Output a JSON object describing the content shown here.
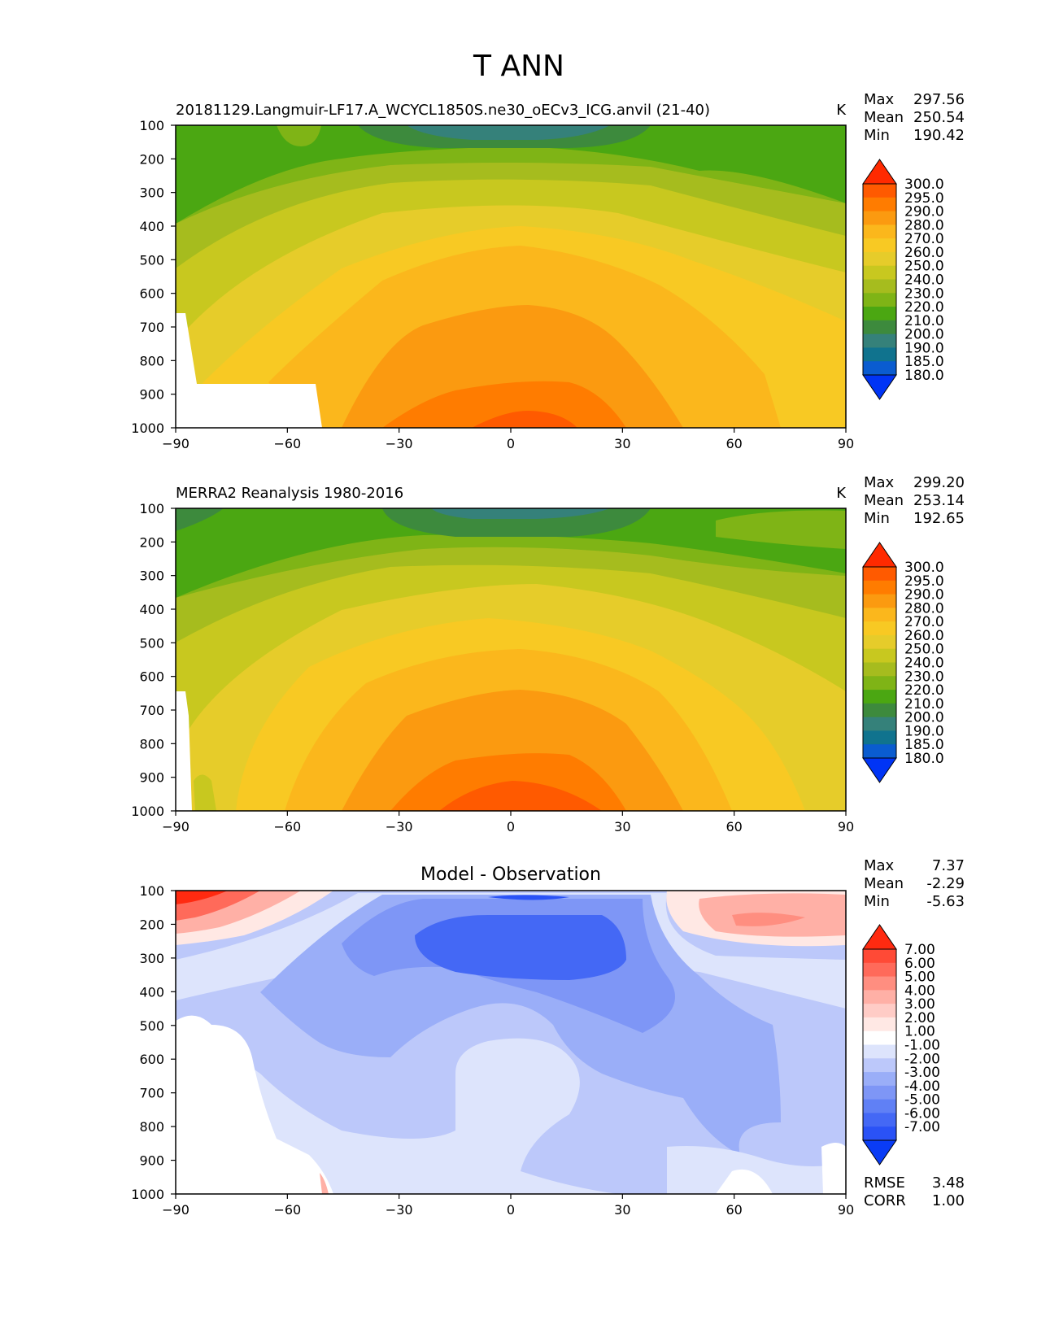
{
  "figure": {
    "title": "T ANN"
  },
  "chart_data": [
    {
      "type": "heatmap",
      "title": "20181129.Langmuir-LF17.A_WCYCL1850S.ne30_oECv3_ICG.anvil (21-40)",
      "units": "K",
      "xlabel": "",
      "ylabel": "",
      "xlim": [
        -90,
        90
      ],
      "ylim": [
        1000,
        100
      ],
      "x_ticks": [
        "−90",
        "−60",
        "−30",
        "0",
        "30",
        "60",
        "90"
      ],
      "x_tick_values": [
        -90,
        -60,
        -30,
        0,
        30,
        60,
        90
      ],
      "y_ticks": [
        "100",
        "200",
        "300",
        "400",
        "500",
        "600",
        "700",
        "800",
        "900",
        "1000"
      ],
      "y_tick_values": [
        100,
        200,
        300,
        400,
        500,
        600,
        700,
        800,
        900,
        1000
      ],
      "stats": [
        {
          "label": "Max",
          "value": "297.56"
        },
        {
          "label": "Mean",
          "value": "250.54"
        },
        {
          "label": "Min",
          "value": "190.42"
        }
      ],
      "colorbar": {
        "levels": [
          "300.0",
          "295.0",
          "290.0",
          "280.0",
          "270.0",
          "260.0",
          "250.0",
          "240.0",
          "230.0",
          "220.0",
          "210.0",
          "200.0",
          "190.0",
          "185.0",
          "180.0"
        ],
        "colors": [
          "#ff2a00",
          "#ff5a00",
          "#ff7c00",
          "#fb9a10",
          "#fbb71c",
          "#f8c923",
          "#e6cc2a",
          "#c8c81f",
          "#a6bc1e",
          "#7fb416",
          "#4ba712",
          "#3d8a3d",
          "#35817a",
          "#10738e",
          "#0a5cd0",
          "#0034f5"
        ]
      },
      "field": "temperature"
    },
    {
      "type": "heatmap",
      "title": "MERRA2 Reanalysis 1980-2016",
      "units": "K",
      "xlabel": "",
      "ylabel": "",
      "xlim": [
        -90,
        90
      ],
      "ylim": [
        1000,
        100
      ],
      "x_ticks": [
        "−90",
        "−60",
        "−30",
        "0",
        "30",
        "60",
        "90"
      ],
      "x_tick_values": [
        -90,
        -60,
        -30,
        0,
        30,
        60,
        90
      ],
      "y_ticks": [
        "100",
        "200",
        "300",
        "400",
        "500",
        "600",
        "700",
        "800",
        "900",
        "1000"
      ],
      "y_tick_values": [
        100,
        200,
        300,
        400,
        500,
        600,
        700,
        800,
        900,
        1000
      ],
      "stats": [
        {
          "label": "Max",
          "value": "299.20"
        },
        {
          "label": "Mean",
          "value": "253.14"
        },
        {
          "label": "Min",
          "value": "192.65"
        }
      ],
      "colorbar": {
        "levels": [
          "300.0",
          "295.0",
          "290.0",
          "280.0",
          "270.0",
          "260.0",
          "250.0",
          "240.0",
          "230.0",
          "220.0",
          "210.0",
          "200.0",
          "190.0",
          "185.0",
          "180.0"
        ],
        "colors": [
          "#ff2a00",
          "#ff5a00",
          "#ff7c00",
          "#fb9a10",
          "#fbb71c",
          "#f8c923",
          "#e6cc2a",
          "#c8c81f",
          "#a6bc1e",
          "#7fb416",
          "#4ba712",
          "#3d8a3d",
          "#35817a",
          "#10738e",
          "#0a5cd0",
          "#0034f5"
        ]
      },
      "field": "temperature"
    },
    {
      "type": "heatmap",
      "title": "Model - Observation",
      "units": "",
      "xlabel": "",
      "ylabel": "",
      "xlim": [
        -90,
        90
      ],
      "ylim": [
        1000,
        100
      ],
      "x_ticks": [
        "−90",
        "−60",
        "−30",
        "0",
        "30",
        "60",
        "90"
      ],
      "x_tick_values": [
        -90,
        -60,
        -30,
        0,
        30,
        60,
        90
      ],
      "y_ticks": [
        "100",
        "200",
        "300",
        "400",
        "500",
        "600",
        "700",
        "800",
        "900",
        "1000"
      ],
      "y_tick_values": [
        100,
        200,
        300,
        400,
        500,
        600,
        700,
        800,
        900,
        1000
      ],
      "stats": [
        {
          "label": "Max",
          "value": "7.37"
        },
        {
          "label": "Mean",
          "value": "-2.29"
        },
        {
          "label": "Min",
          "value": "-5.63"
        }
      ],
      "extra_stats": [
        {
          "label": "RMSE",
          "value": "3.48"
        },
        {
          "label": "CORR",
          "value": "1.00"
        }
      ],
      "colorbar": {
        "levels": [
          "7.00",
          "6.00",
          "5.00",
          "4.00",
          "3.00",
          "2.00",
          "1.00",
          "-1.00",
          "-2.00",
          "-3.00",
          "-4.00",
          "-5.00",
          "-6.00",
          "-7.00"
        ],
        "colors": [
          "#ff2a10",
          "#ff4a36",
          "#ff6a5a",
          "#ff8e80",
          "#ffb0a6",
          "#ffccc6",
          "#ffe8e4",
          "#ffffff",
          "#dde4fc",
          "#bcc8fa",
          "#9aaef8",
          "#7e96f6",
          "#6080f5",
          "#4468f5",
          "#2a52f6",
          "#0a3cf5"
        ]
      },
      "field": "difference"
    }
  ]
}
